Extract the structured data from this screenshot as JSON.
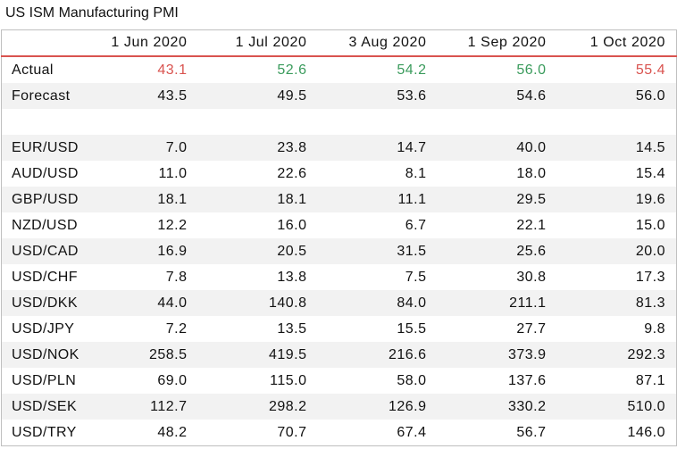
{
  "title": "US ISM Manufacturing PMI",
  "colors": {
    "up": "#3a9b5c",
    "down": "#d9534f"
  },
  "columns": [
    "",
    "1 Jun 2020",
    "1 Jul 2020",
    "3 Aug 2020",
    "1 Sep 2020",
    "1 Oct 2020"
  ],
  "actual": {
    "label": "Actual",
    "values": [
      "43.1",
      "52.6",
      "54.2",
      "56.0",
      "55.4"
    ],
    "trend": [
      "down",
      "up",
      "up",
      "up",
      "down"
    ]
  },
  "forecast": {
    "label": "Forecast",
    "values": [
      "43.5",
      "49.5",
      "53.6",
      "54.6",
      "56.0"
    ]
  },
  "pairs": [
    {
      "label": "EUR/USD",
      "values": [
        "7.0",
        "23.8",
        "14.7",
        "40.0",
        "14.5"
      ]
    },
    {
      "label": "AUD/USD",
      "values": [
        "11.0",
        "22.6",
        "8.1",
        "18.0",
        "15.4"
      ]
    },
    {
      "label": "GBP/USD",
      "values": [
        "18.1",
        "18.1",
        "11.1",
        "29.5",
        "19.6"
      ]
    },
    {
      "label": "NZD/USD",
      "values": [
        "12.2",
        "16.0",
        "6.7",
        "22.1",
        "15.0"
      ]
    },
    {
      "label": "USD/CAD",
      "values": [
        "16.9",
        "20.5",
        "31.5",
        "25.6",
        "20.0"
      ]
    },
    {
      "label": "USD/CHF",
      "values": [
        "7.8",
        "13.8",
        "7.5",
        "30.8",
        "17.3"
      ]
    },
    {
      "label": "USD/DKK",
      "values": [
        "44.0",
        "140.8",
        "84.0",
        "211.1",
        "81.3"
      ]
    },
    {
      "label": "USD/JPY",
      "values": [
        "7.2",
        "13.5",
        "15.5",
        "27.7",
        "9.8"
      ]
    },
    {
      "label": "USD/NOK",
      "values": [
        "258.5",
        "419.5",
        "216.6",
        "373.9",
        "292.3"
      ]
    },
    {
      "label": "USD/PLN",
      "values": [
        "69.0",
        "115.0",
        "58.0",
        "137.6",
        "87.1"
      ]
    },
    {
      "label": "USD/SEK",
      "values": [
        "112.7",
        "298.2",
        "126.9",
        "330.2",
        "510.0"
      ]
    },
    {
      "label": "USD/TRY",
      "values": [
        "48.2",
        "70.7",
        "67.4",
        "56.7",
        "146.0"
      ]
    }
  ]
}
